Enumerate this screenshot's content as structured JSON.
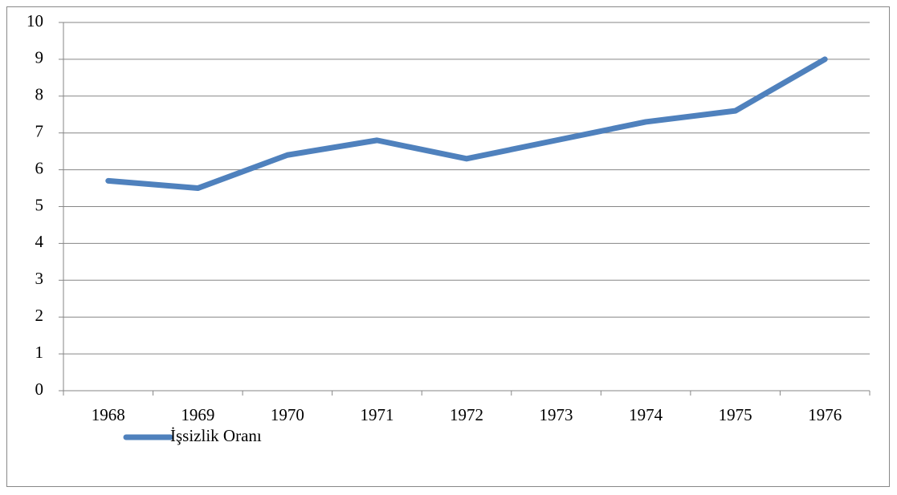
{
  "chart_data": {
    "type": "line",
    "categories": [
      "1968",
      "1969",
      "1970",
      "1971",
      "1972",
      "1973",
      "1974",
      "1975",
      "1976"
    ],
    "series": [
      {
        "name": "İşsizlik Oranı",
        "color": "#4f81bd",
        "values": [
          5.7,
          5.5,
          6.4,
          6.8,
          6.3,
          6.8,
          7.3,
          7.6,
          9
        ]
      }
    ],
    "ylim": [
      0,
      10
    ],
    "yticks": [
      0,
      1,
      2,
      3,
      4,
      5,
      6,
      7,
      8,
      9,
      10
    ],
    "grid": true,
    "legend": "bottom-left"
  }
}
